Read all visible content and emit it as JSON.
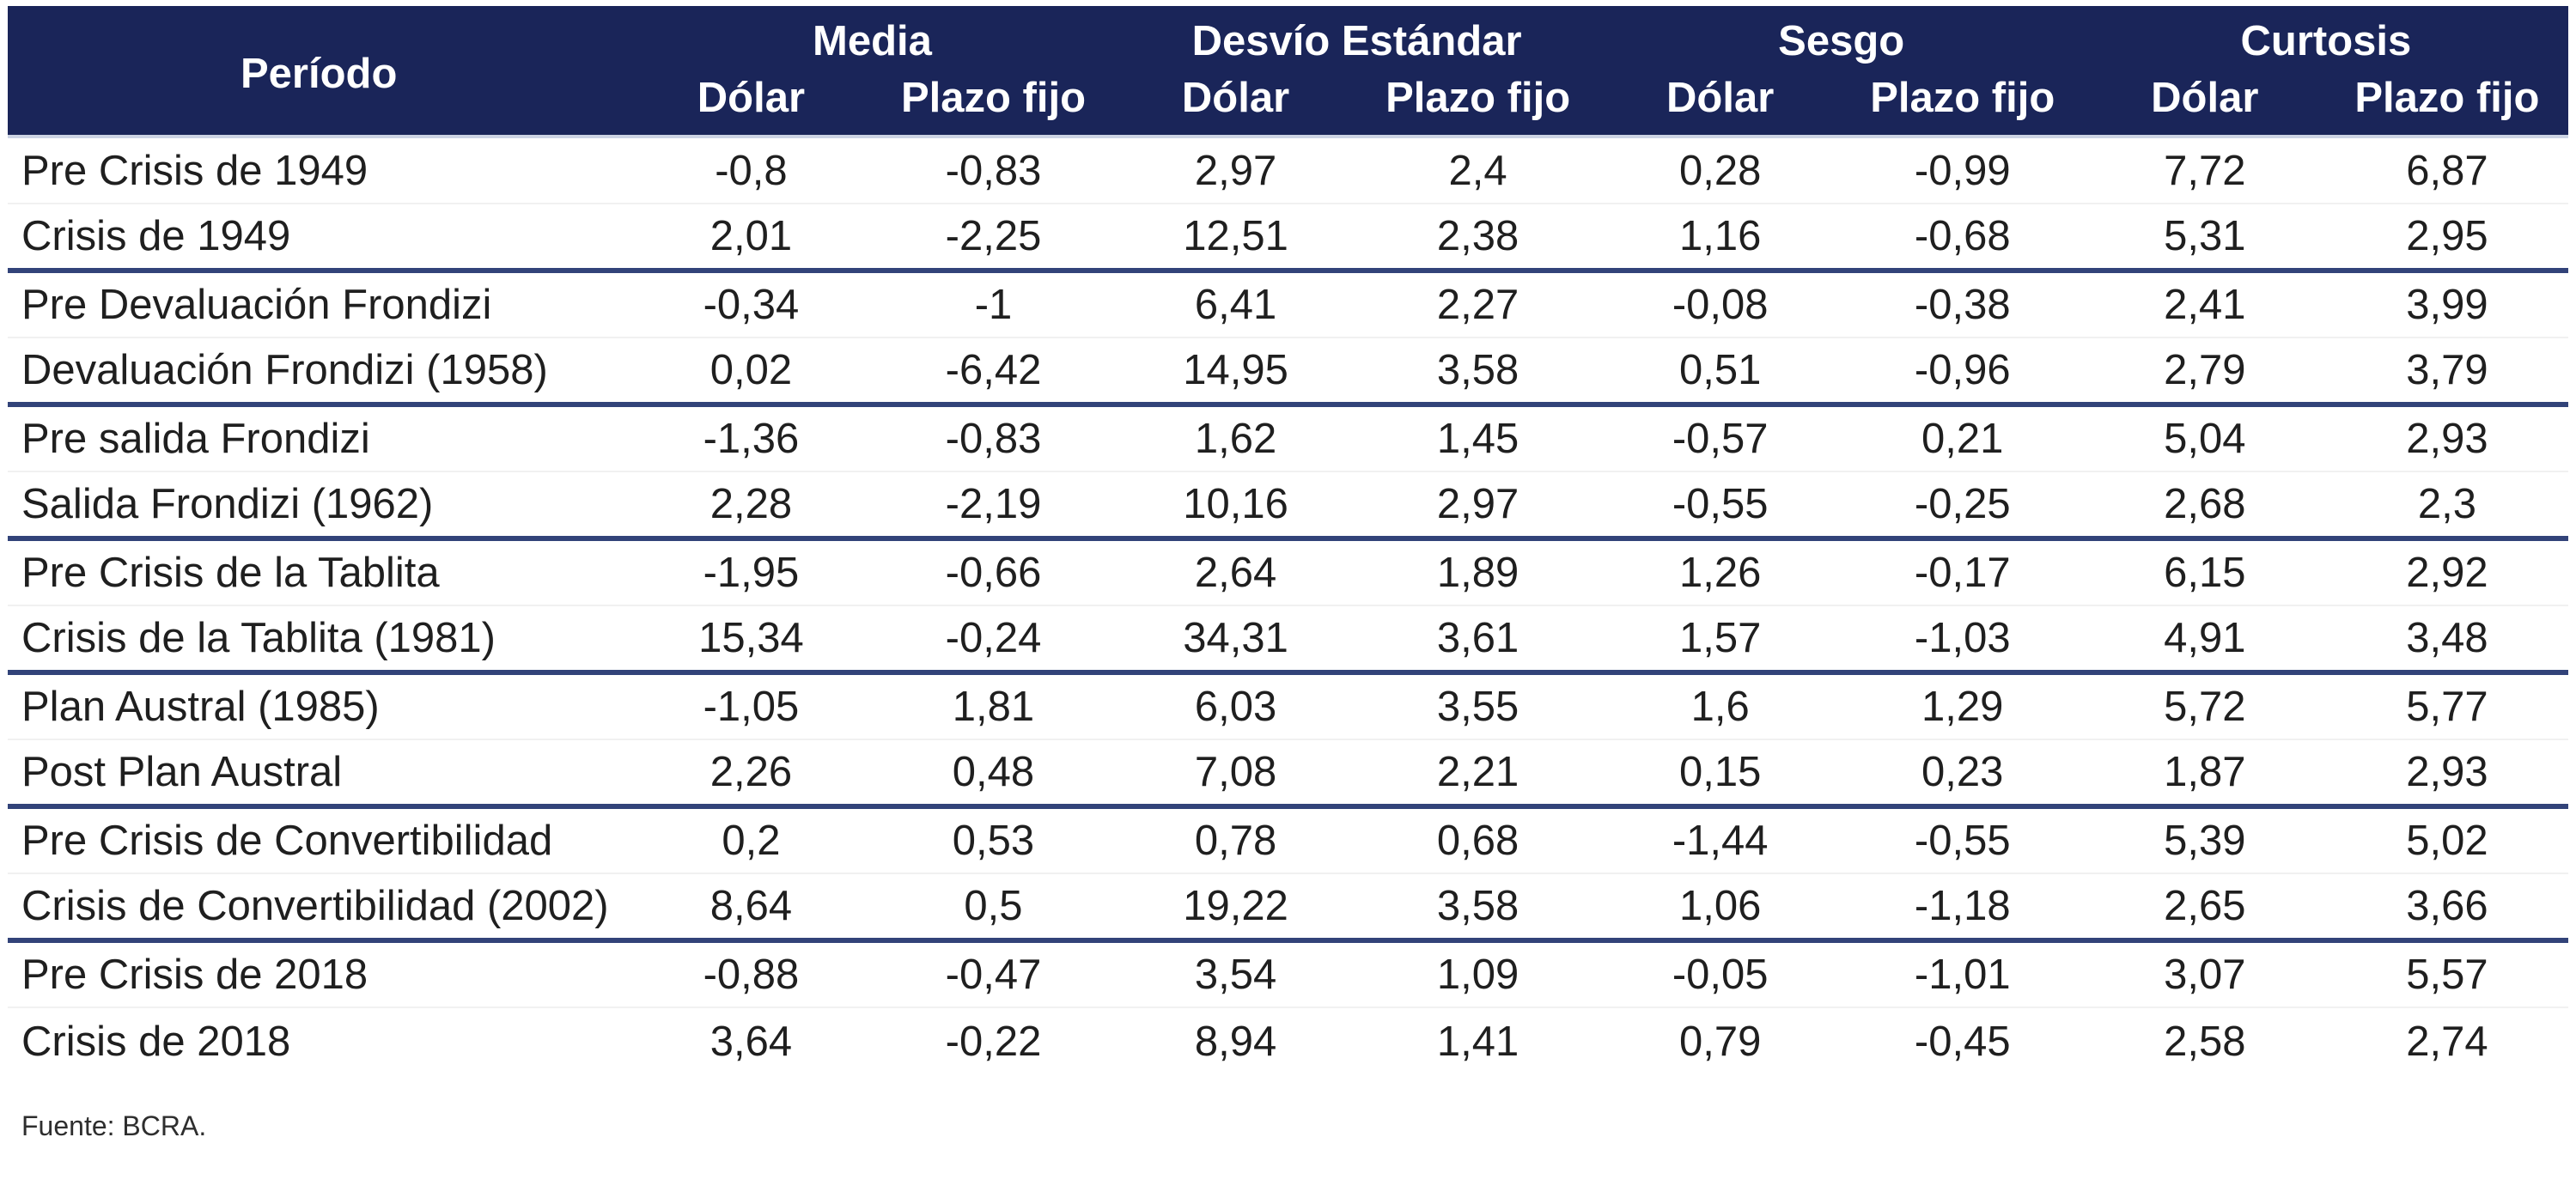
{
  "chart_data": {
    "type": "table",
    "period_header": "Período",
    "groups": [
      "Media",
      "Desvío Estándar",
      "Sesgo",
      "Curtosis"
    ],
    "sub_headers": [
      "Dólar",
      "Plazo fijo"
    ],
    "columns": [
      "Período",
      "Media Dólar",
      "Media Plazo fijo",
      "Desvío Estándar Dólar",
      "Desvío Estándar Plazo fijo",
      "Sesgo Dólar",
      "Sesgo Plazo fijo",
      "Curtosis Dólar",
      "Curtosis Plazo fijo"
    ],
    "rows": [
      {
        "period": "Pre Crisis de 1949",
        "values": [
          "-0,8",
          "-0,83",
          "2,97",
          "2,4",
          "0,28",
          "-0,99",
          "7,72",
          "6,87"
        ],
        "group_end": false
      },
      {
        "period": "Crisis de 1949",
        "values": [
          "2,01",
          "-2,25",
          "12,51",
          "2,38",
          "1,16",
          "-0,68",
          "5,31",
          "2,95"
        ],
        "group_end": true
      },
      {
        "period": "Pre Devaluación Frondizi",
        "values": [
          "-0,34",
          "-1",
          "6,41",
          "2,27",
          "-0,08",
          "-0,38",
          "2,41",
          "3,99"
        ],
        "group_end": false
      },
      {
        "period": "Devaluación Frondizi (1958)",
        "values": [
          "0,02",
          "-6,42",
          "14,95",
          "3,58",
          "0,51",
          "-0,96",
          "2,79",
          "3,79"
        ],
        "group_end": true
      },
      {
        "period": "Pre salida Frondizi",
        "values": [
          "-1,36",
          "-0,83",
          "1,62",
          "1,45",
          "-0,57",
          "0,21",
          "5,04",
          "2,93"
        ],
        "group_end": false
      },
      {
        "period": "Salida Frondizi (1962)",
        "values": [
          "2,28",
          "-2,19",
          "10,16",
          "2,97",
          "-0,55",
          "-0,25",
          "2,68",
          "2,3"
        ],
        "group_end": true
      },
      {
        "period": "Pre Crisis de la Tablita",
        "values": [
          "-1,95",
          "-0,66",
          "2,64",
          "1,89",
          "1,26",
          "-0,17",
          "6,15",
          "2,92"
        ],
        "group_end": false
      },
      {
        "period": "Crisis de la Tablita (1981)",
        "values": [
          "15,34",
          "-0,24",
          "34,31",
          "3,61",
          "1,57",
          "-1,03",
          "4,91",
          "3,48"
        ],
        "group_end": true
      },
      {
        "period": "Plan Austral (1985)",
        "values": [
          "-1,05",
          "1,81",
          "6,03",
          "3,55",
          "1,6",
          "1,29",
          "5,72",
          "5,77"
        ],
        "group_end": false
      },
      {
        "period": "Post Plan Austral",
        "values": [
          "2,26",
          "0,48",
          "7,08",
          "2,21",
          "0,15",
          "0,23",
          "1,87",
          "2,93"
        ],
        "group_end": true
      },
      {
        "period": "Pre Crisis de Convertibilidad",
        "values": [
          "0,2",
          "0,53",
          "0,78",
          "0,68",
          "-1,44",
          "-0,55",
          "5,39",
          "5,02"
        ],
        "group_end": false
      },
      {
        "period": "Crisis de Convertibilidad (2002)",
        "values": [
          "8,64",
          "0,5",
          "19,22",
          "3,58",
          "1,06",
          "-1,18",
          "2,65",
          "3,66"
        ],
        "group_end": true
      },
      {
        "period": "Pre Crisis de 2018",
        "values": [
          "-0,88",
          "-0,47",
          "3,54",
          "1,09",
          "-0,05",
          "-1,01",
          "3,07",
          "5,57"
        ],
        "group_end": false
      },
      {
        "period": "Crisis de 2018",
        "values": [
          "3,64",
          "-0,22",
          "8,94",
          "1,41",
          "0,79",
          "-0,45",
          "2,58",
          "2,74"
        ],
        "group_end": false
      }
    ]
  },
  "footer": {
    "source": "Fuente: BCRA."
  },
  "colors": {
    "header_bg": "#1a2559",
    "header_text": "#ffffff",
    "separator": "#324379",
    "body_text": "#1f1f1f"
  }
}
